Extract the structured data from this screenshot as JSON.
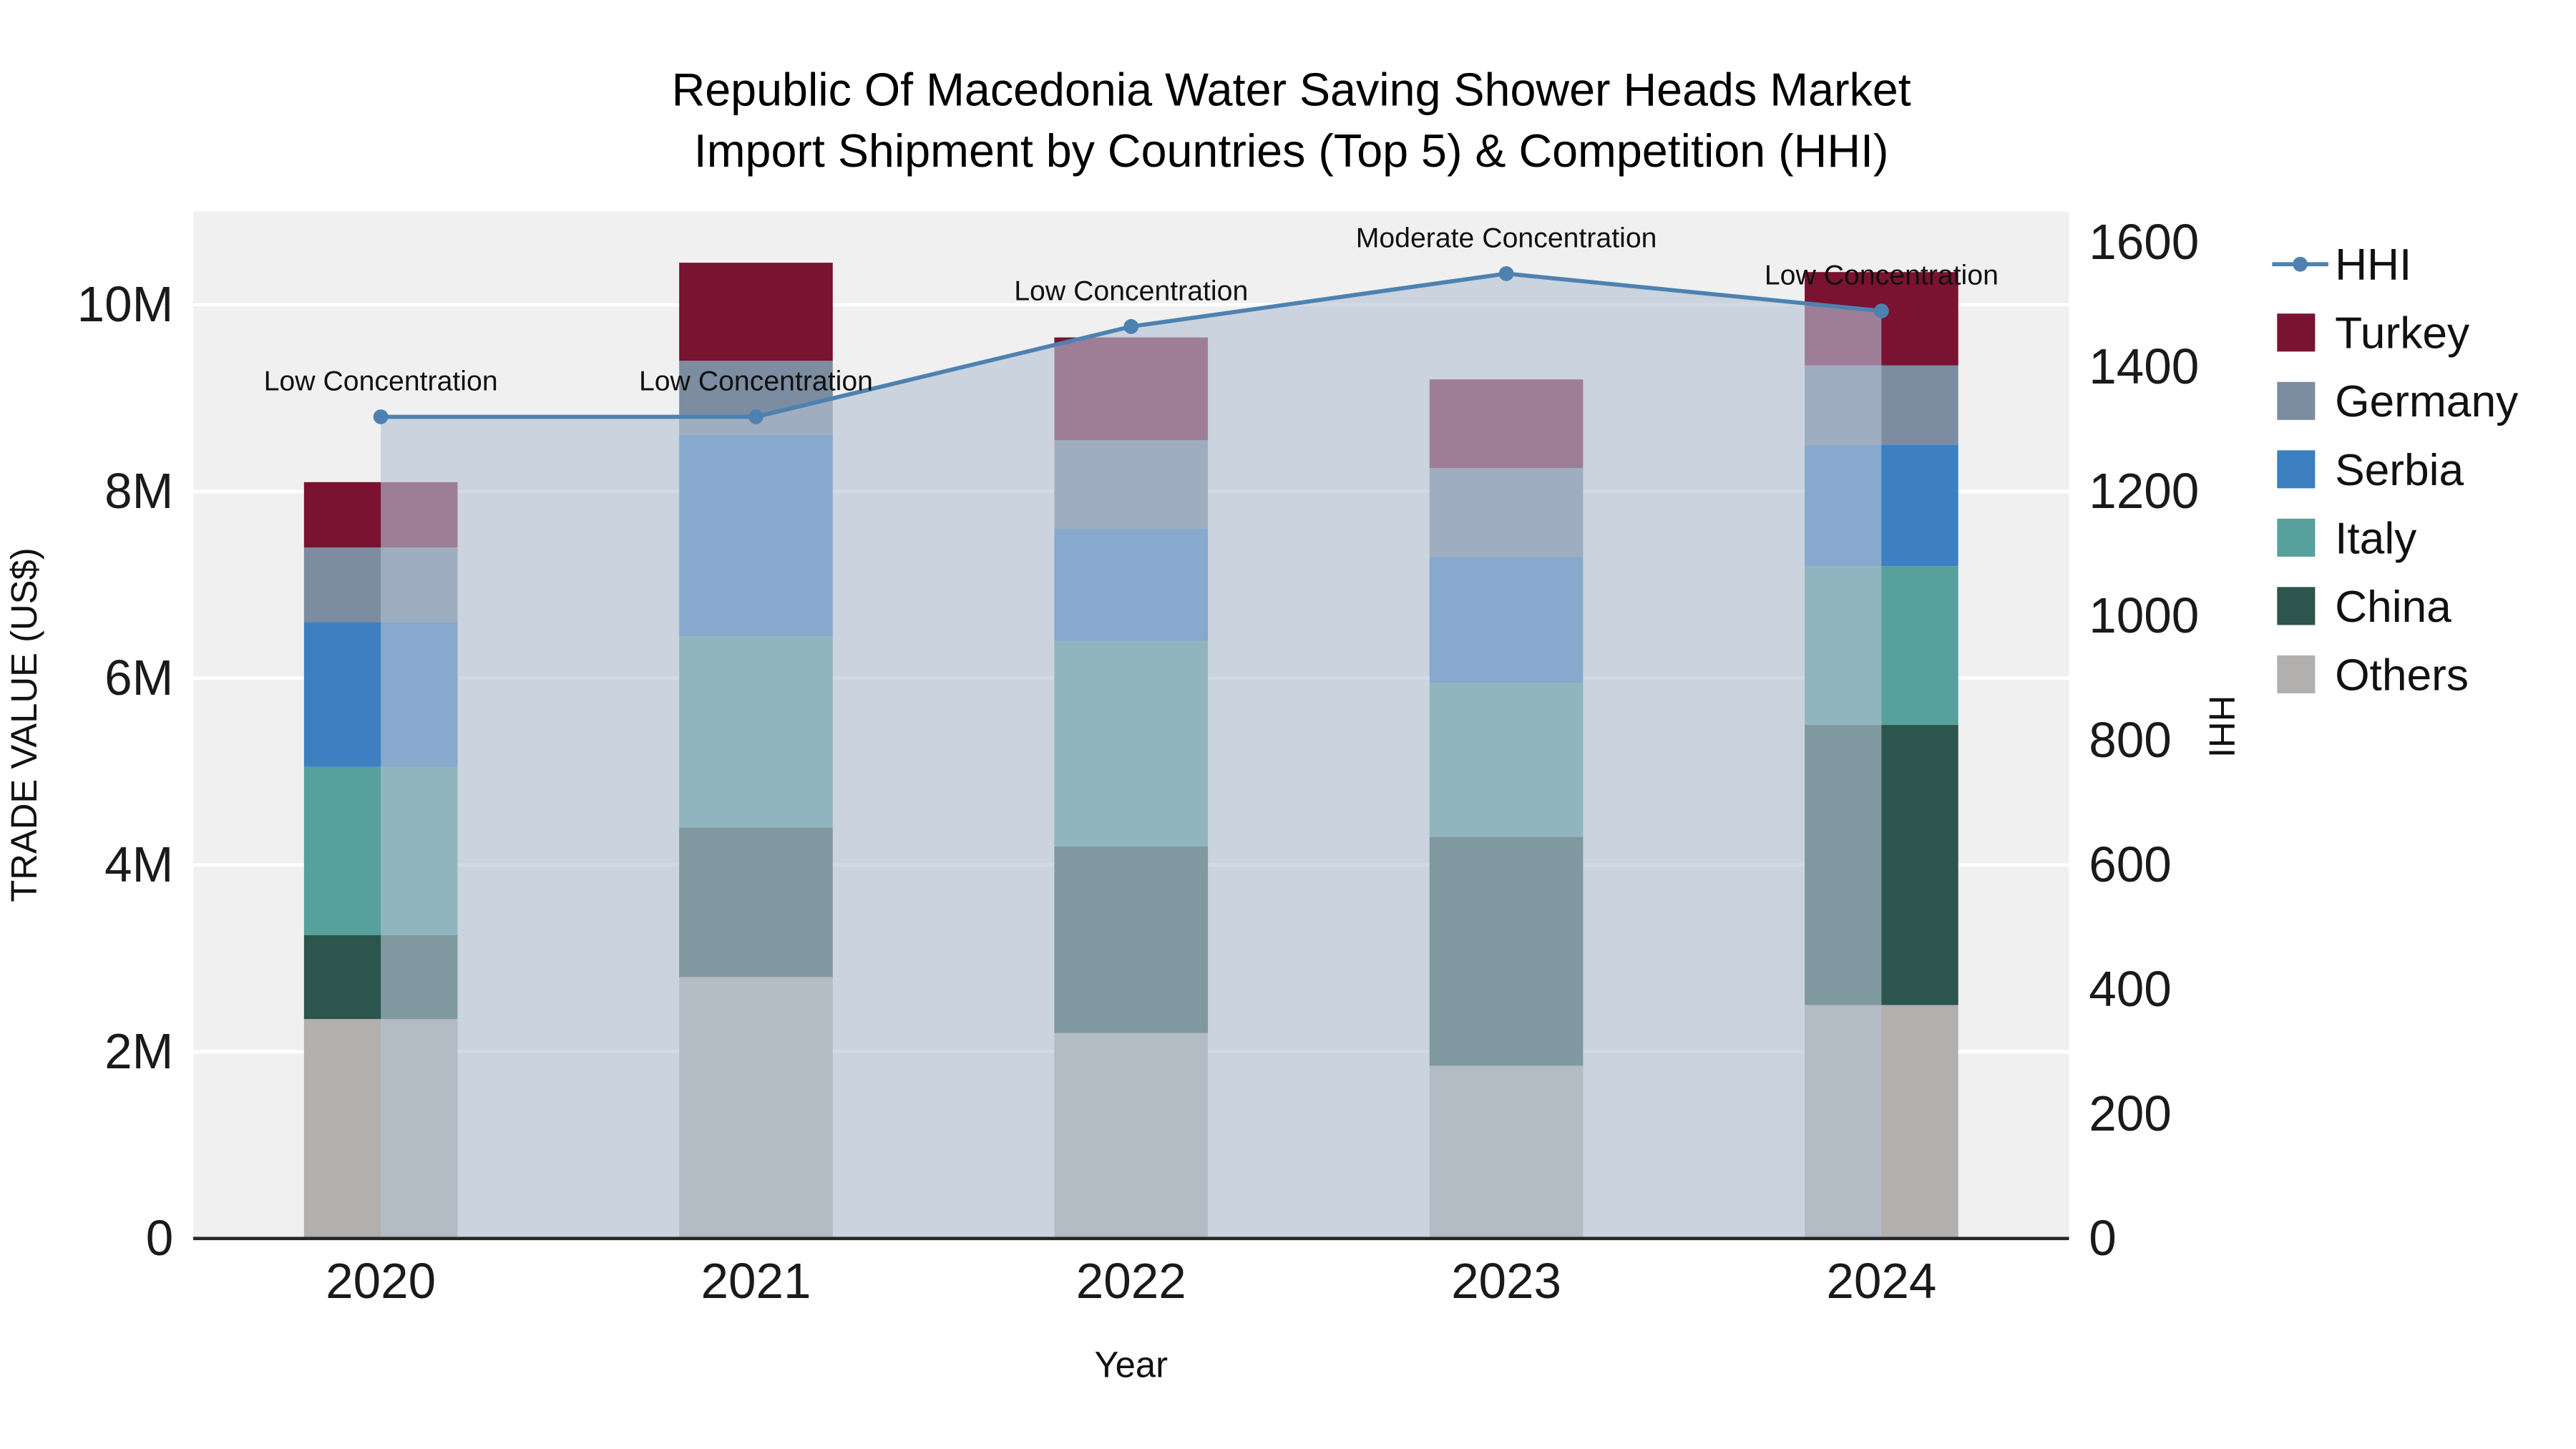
{
  "title": {
    "line1": "Republic Of Macedonia Water Saving Shower Heads Market",
    "line2": "Import Shipment by Countries (Top 5) & Competition (HHI)"
  },
  "axes": {
    "x_title": "Year",
    "left_title": "TRADE VALUE (US$)",
    "right_title": "HHI"
  },
  "chart_data": {
    "type": "bar",
    "subtype": "stacked-bars-with-hhi-line-and-area",
    "title": "Republic Of Macedonia Water Saving Shower Heads Market Import Shipment by Countries (Top 5) & Competition (HHI)",
    "xlabel": "Year",
    "ylabel_left": "TRADE VALUE (US$)",
    "ylabel_right": "HHI",
    "categories": [
      "2020",
      "2021",
      "2022",
      "2023",
      "2024"
    ],
    "stack_order_bottom_to_top": [
      "Others",
      "China",
      "Italy",
      "Serbia",
      "Germany",
      "Turkey"
    ],
    "series": [
      {
        "name": "Others",
        "values": [
          2350000,
          2800000,
          2200000,
          1850000,
          2500000
        ]
      },
      {
        "name": "China",
        "values": [
          900000,
          1600000,
          2000000,
          2450000,
          3000000
        ]
      },
      {
        "name": "Italy",
        "values": [
          1800000,
          2050000,
          2200000,
          1650000,
          1700000
        ]
      },
      {
        "name": "Serbia",
        "values": [
          1550000,
          2150000,
          1200000,
          1350000,
          1300000
        ]
      },
      {
        "name": "Germany",
        "values": [
          800000,
          800000,
          950000,
          950000,
          850000
        ]
      },
      {
        "name": "Turkey",
        "values": [
          700000,
          1050000,
          1100000,
          950000,
          1000000
        ]
      }
    ],
    "line_series": {
      "name": "HHI",
      "axis": "right",
      "values": [
        1320,
        1320,
        1465,
        1550,
        1490
      ]
    },
    "annotations": [
      "Low Concentration",
      "Low Concentration",
      "Low Concentration",
      "Moderate Concentration",
      "Low Concentration"
    ],
    "left_axis": {
      "range": [
        0,
        11000000
      ],
      "tick_values": [
        0,
        2000000,
        4000000,
        6000000,
        8000000,
        10000000
      ],
      "tick_labels": [
        "0",
        "2M",
        "4M",
        "6M",
        "8M",
        "10M"
      ]
    },
    "right_axis": {
      "range": [
        0,
        1650
      ],
      "tick_values": [
        0,
        200,
        400,
        600,
        800,
        1000,
        1200,
        1400,
        1600
      ],
      "tick_labels": [
        "0",
        "200",
        "400",
        "600",
        "800",
        "1000",
        "1200",
        "1400",
        "1600"
      ]
    },
    "legend": {
      "position": "right",
      "items": [
        "HHI",
        "Turkey",
        "Germany",
        "Serbia",
        "Italy",
        "China",
        "Others"
      ]
    },
    "colors": {
      "HHI": "#4d82b0",
      "Turkey": "#7a1232",
      "Germany": "#7c8ca1",
      "Serbia": "#3c80c2",
      "Italy": "#57a09c",
      "China": "#2b554d",
      "Others": "#b1b0af",
      "hhi_area_fill": "rgba(180,194,212,0.62)",
      "plot_background": "#f0f0f0",
      "gridline": "#ffffff",
      "axis_line": "#262626"
    },
    "grid": true
  }
}
